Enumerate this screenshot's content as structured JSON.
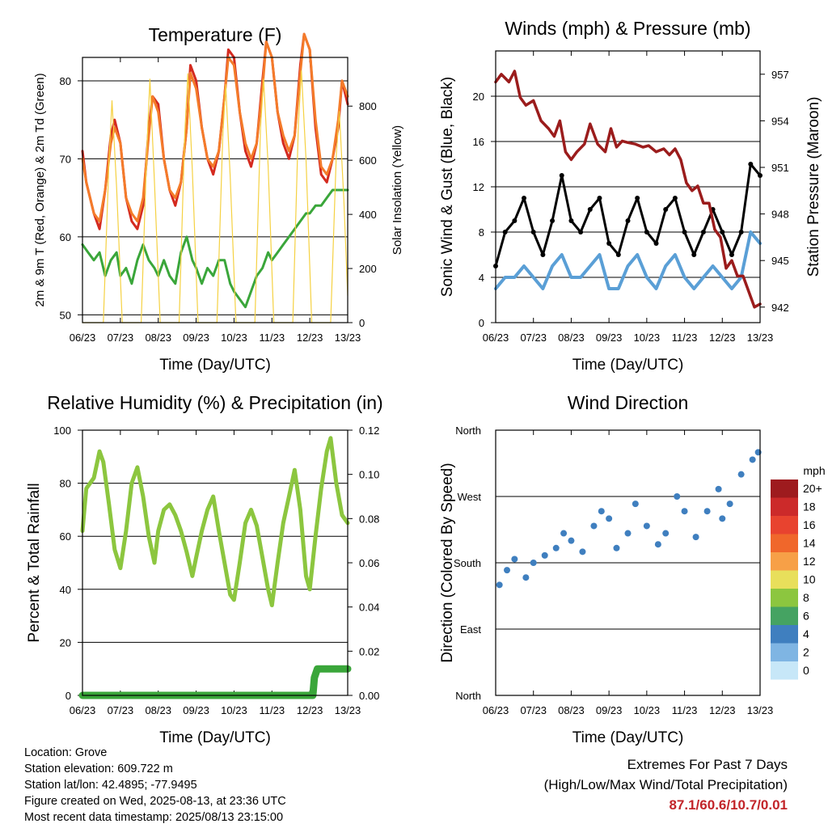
{
  "x_ticks": [
    "06/23",
    "07/23",
    "08/23",
    "09/23",
    "10/23",
    "11/23",
    "12/23",
    "13/23"
  ],
  "info": {
    "location": "Location: Grove",
    "elevation": "Station elevation: 609.722 m",
    "latlon": "Station lat/lon: 42.4895; -77.9495",
    "created": "Figure created on Wed, 2025-08-13, at 23:36 UTC",
    "recent": "Most recent data timestamp: 2025/08/13 23:15:00"
  },
  "extremes": {
    "title": "Extremes For Past 7 Days",
    "subtitle": "(High/Low/Max Wind/Total Precipitation)",
    "values": "87.1/60.6/10.7/0.01"
  },
  "chart_data": [
    {
      "type": "line",
      "title": "Temperature (F)",
      "xlabel": "Time (Day/UTC)",
      "ylabel": "2m & 9m T (Red, Orange) & 2m Td (Green)",
      "ylabel_right": "Solar Insolation (Yellow)",
      "ylim": [
        49,
        83
      ],
      "yticks": [
        50,
        60,
        70,
        80
      ],
      "ylim_right": [
        0,
        980
      ],
      "yticks_right": [
        0,
        200,
        400,
        600,
        800
      ],
      "xlim": [
        0,
        7
      ],
      "grid": true,
      "series": [
        {
          "name": "2m T",
          "color": "#d42a1f",
          "axis": "left",
          "x": [
            0,
            0.1,
            0.3,
            0.45,
            0.6,
            0.75,
            0.85,
            1.0,
            1.15,
            1.3,
            1.45,
            1.6,
            1.75,
            1.85,
            2.0,
            2.15,
            2.3,
            2.45,
            2.6,
            2.75,
            2.85,
            3.0,
            3.15,
            3.3,
            3.45,
            3.6,
            3.75,
            3.85,
            4.0,
            4.15,
            4.3,
            4.45,
            4.6,
            4.75,
            4.85,
            5.0,
            5.15,
            5.3,
            5.45,
            5.6,
            5.75,
            5.85,
            6.0,
            6.15,
            6.3,
            6.45,
            6.6,
            6.75,
            6.85,
            7.0
          ],
          "y": [
            71,
            67,
            63,
            61,
            66,
            73,
            75,
            72,
            65,
            62,
            61,
            64,
            74,
            78,
            77,
            70,
            66,
            64,
            67,
            74,
            82,
            80,
            74,
            70,
            68,
            71,
            78,
            84,
            83,
            76,
            71,
            69,
            72,
            80,
            85,
            83,
            76,
            72,
            70,
            73,
            82,
            86,
            84,
            74,
            68,
            67,
            70,
            74,
            80,
            77
          ]
        },
        {
          "name": "9m T",
          "color": "#f47b2a",
          "axis": "left",
          "x": [
            0,
            0.1,
            0.3,
            0.45,
            0.6,
            0.75,
            0.85,
            1.0,
            1.15,
            1.3,
            1.45,
            1.6,
            1.75,
            1.85,
            2.0,
            2.15,
            2.3,
            2.45,
            2.6,
            2.75,
            2.85,
            3.0,
            3.15,
            3.3,
            3.45,
            3.6,
            3.75,
            3.85,
            4.0,
            4.15,
            4.3,
            4.45,
            4.6,
            4.75,
            4.85,
            5.0,
            5.15,
            5.3,
            5.45,
            5.6,
            5.75,
            5.85,
            6.0,
            6.15,
            6.3,
            6.45,
            6.6,
            6.75,
            6.85,
            7.0
          ],
          "y": [
            70,
            67,
            63,
            62,
            66,
            72,
            74,
            72,
            65,
            63,
            62,
            65,
            73,
            78,
            76,
            70,
            66,
            65,
            67,
            74,
            81,
            79,
            74,
            70,
            69,
            71,
            78,
            83,
            82,
            76,
            72,
            70,
            72,
            79,
            85,
            83,
            76,
            73,
            71,
            73,
            81,
            86,
            84,
            75,
            69,
            68,
            70,
            75,
            80,
            78
          ]
        },
        {
          "name": "2m Td",
          "color": "#3aa63a",
          "axis": "left",
          "x": [
            0,
            0.15,
            0.3,
            0.45,
            0.6,
            0.75,
            0.9,
            1.0,
            1.15,
            1.3,
            1.45,
            1.6,
            1.75,
            1.9,
            2.0,
            2.15,
            2.3,
            2.45,
            2.6,
            2.75,
            2.9,
            3.0,
            3.15,
            3.3,
            3.45,
            3.6,
            3.75,
            3.9,
            4.0,
            4.15,
            4.3,
            4.45,
            4.6,
            4.75,
            4.9,
            5.0,
            5.15,
            5.3,
            5.45,
            5.6,
            5.75,
            5.9,
            6.0,
            6.15,
            6.3,
            6.45,
            6.6,
            6.75,
            6.9,
            7.0
          ],
          "y": [
            59,
            58,
            57,
            58,
            55,
            57,
            58,
            55,
            56,
            54,
            57,
            59,
            57,
            56,
            55,
            57,
            55,
            54,
            58,
            60,
            57,
            56,
            54,
            56,
            55,
            57,
            57,
            54,
            53,
            52,
            51,
            53,
            55,
            56,
            58,
            57,
            58,
            59,
            60,
            61,
            62,
            63,
            63,
            64,
            64,
            65,
            66,
            66,
            66,
            66
          ]
        },
        {
          "name": "Solar Insolation",
          "color": "#f5d142",
          "axis": "right",
          "x": [
            0,
            0.55,
            0.7,
            0.78,
            0.9,
            1.05,
            1.55,
            1.7,
            1.78,
            1.9,
            2.05,
            2.55,
            2.7,
            2.78,
            2.9,
            3.05,
            3.55,
            3.7,
            3.78,
            3.9,
            4.05,
            4.55,
            4.7,
            4.78,
            4.9,
            5.05,
            5.55,
            5.7,
            5.78,
            5.9,
            6.05,
            6.55,
            6.7,
            6.78,
            6.9,
            7.0
          ],
          "y": [
            0,
            0,
            600,
            820,
            500,
            0,
            0,
            650,
            900,
            520,
            0,
            0,
            700,
            920,
            560,
            0,
            0,
            680,
            880,
            540,
            0,
            0,
            720,
            900,
            580,
            0,
            0,
            740,
            930,
            600,
            0,
            0,
            620,
            780,
            450,
            100
          ]
        }
      ]
    },
    {
      "type": "line",
      "title": "Winds (mph) & Pressure (mb)",
      "xlabel": "Time (Day/UTC)",
      "ylabel": "Sonic Wind & Gust (Blue, Black)",
      "ylabel_right": "Station Pressure (Maroon)",
      "ylim": [
        0,
        24
      ],
      "yticks": [
        0,
        4,
        8,
        12,
        16,
        20
      ],
      "ylim_right": [
        941,
        958.5
      ],
      "yticks_right": [
        942,
        945,
        948,
        951,
        954,
        957
      ],
      "xlim": [
        0,
        7
      ],
      "grid": true,
      "series": [
        {
          "name": "Sonic Wind",
          "color": "#5a9fd6",
          "axis": "left",
          "x": [
            0,
            0.25,
            0.5,
            0.75,
            1.0,
            1.25,
            1.5,
            1.75,
            2.0,
            2.25,
            2.5,
            2.75,
            3.0,
            3.25,
            3.5,
            3.75,
            4.0,
            4.25,
            4.5,
            4.75,
            5.0,
            5.25,
            5.5,
            5.75,
            6.0,
            6.25,
            6.5,
            6.75,
            7.0
          ],
          "y": [
            3,
            4,
            4,
            5,
            4,
            3,
            5,
            6,
            4,
            4,
            5,
            6,
            3,
            3,
            5,
            6,
            4,
            3,
            5,
            6,
            4,
            3,
            4,
            5,
            4,
            3,
            4,
            8,
            7
          ]
        },
        {
          "name": "Gust",
          "color": "#000000",
          "axis": "left",
          "x": [
            0,
            0.25,
            0.5,
            0.75,
            1.0,
            1.25,
            1.5,
            1.75,
            2.0,
            2.25,
            2.5,
            2.75,
            3.0,
            3.25,
            3.5,
            3.75,
            4.0,
            4.25,
            4.5,
            4.75,
            5.0,
            5.25,
            5.5,
            5.75,
            6.0,
            6.25,
            6.5,
            6.75,
            7.0
          ],
          "y": [
            5,
            8,
            9,
            11,
            8,
            6,
            9,
            13,
            9,
            8,
            10,
            11,
            7,
            6,
            9,
            11,
            8,
            7,
            10,
            11,
            8,
            6,
            8,
            10,
            8,
            6,
            8,
            14,
            13
          ]
        },
        {
          "name": "Station Pressure",
          "color": "#9b1c1c",
          "axis": "right",
          "x": [
            0,
            0.15,
            0.35,
            0.5,
            0.65,
            0.8,
            1.0,
            1.2,
            1.4,
            1.55,
            1.7,
            1.85,
            2.0,
            2.15,
            2.35,
            2.5,
            2.7,
            2.9,
            3.05,
            3.2,
            3.35,
            3.5,
            3.7,
            3.9,
            4.05,
            4.25,
            4.45,
            4.6,
            4.75,
            4.9,
            5.05,
            5.2,
            5.35,
            5.5,
            5.65,
            5.8,
            5.95,
            6.1,
            6.25,
            6.4,
            6.55,
            6.7,
            6.85,
            7.0
          ],
          "y": [
            956.5,
            957,
            956.5,
            957.2,
            955.5,
            955,
            955.3,
            954,
            953.5,
            953,
            954,
            952,
            951.5,
            952,
            952.5,
            953.8,
            952.5,
            952,
            953.5,
            952.3,
            952.7,
            952.6,
            952.5,
            952.3,
            952.4,
            952,
            952.2,
            951.8,
            952.2,
            951.5,
            950,
            949.5,
            949.8,
            948.7,
            948.7,
            947,
            946.5,
            944.5,
            945,
            944,
            944,
            943,
            942,
            942.2
          ]
        }
      ]
    },
    {
      "type": "line",
      "title": "Relative Humidity (%) & Precipitation (in)",
      "xlabel": "Time (Day/UTC)",
      "ylabel": "Percent & Total Rainfall",
      "ylim": [
        0,
        100
      ],
      "yticks": [
        0,
        20,
        40,
        60,
        80,
        100
      ],
      "ylim_right": [
        0,
        0.12
      ],
      "yticks_right": [
        "0.00",
        "0.02",
        "0.04",
        "0.06",
        "0.08",
        "0.10",
        "0.12"
      ],
      "xlim": [
        0,
        7
      ],
      "grid": true,
      "series": [
        {
          "name": "Relative Humidity",
          "color": "#8cc63f",
          "axis": "left",
          "x": [
            0,
            0.1,
            0.3,
            0.45,
            0.55,
            0.7,
            0.85,
            1.0,
            1.15,
            1.3,
            1.45,
            1.6,
            1.75,
            1.9,
            2.0,
            2.15,
            2.3,
            2.45,
            2.6,
            2.75,
            2.9,
            3.0,
            3.15,
            3.3,
            3.45,
            3.6,
            3.75,
            3.9,
            4.0,
            4.15,
            4.3,
            4.45,
            4.6,
            4.75,
            4.9,
            5.0,
            5.15,
            5.3,
            5.45,
            5.6,
            5.75,
            5.9,
            6.0,
            6.15,
            6.3,
            6.45,
            6.55,
            6.7,
            6.85,
            7.0
          ],
          "y": [
            62,
            78,
            82,
            92,
            88,
            72,
            55,
            48,
            62,
            80,
            86,
            75,
            60,
            50,
            62,
            70,
            72,
            68,
            62,
            54,
            45,
            52,
            62,
            70,
            75,
            62,
            50,
            38,
            36,
            50,
            65,
            70,
            64,
            52,
            40,
            34,
            50,
            65,
            75,
            85,
            70,
            45,
            40,
            60,
            78,
            92,
            97,
            80,
            68,
            65
          ]
        },
        {
          "name": "Total Precipitation",
          "color": "#3aa63a",
          "axis": "right",
          "x": [
            0,
            6.0,
            6.08,
            6.12,
            6.2,
            7.0
          ],
          "y": [
            0,
            0,
            0,
            0.008,
            0.012,
            0.012
          ]
        }
      ]
    },
    {
      "type": "scatter",
      "title": "Wind Direction",
      "xlabel": "Time (Day/UTC)",
      "ylabel": "Direction (Colored By Speed)",
      "yticks": [
        "North",
        "East",
        "South",
        "West",
        "North"
      ],
      "ylim": [
        0,
        360
      ],
      "xlim": [
        0,
        7
      ],
      "grid": true,
      "legend": {
        "title": "mph",
        "position": "right",
        "labels": [
          "20+",
          "18",
          "16",
          "14",
          "12",
          "10",
          "8",
          "6",
          "4",
          "2",
          "0"
        ],
        "colors": [
          "#9e1b1e",
          "#cc2a2a",
          "#e8432f",
          "#f0672b",
          "#f7a047",
          "#e8df5b",
          "#8cc63f",
          "#45a362",
          "#3f7fbf",
          "#7fb5e3",
          "#c7e7f8"
        ]
      },
      "series": [
        {
          "name": "Direction",
          "x": [
            0.1,
            0.3,
            0.5,
            0.8,
            1.0,
            1.3,
            1.6,
            1.8,
            2.0,
            2.3,
            2.6,
            2.8,
            3.0,
            3.2,
            3.5,
            3.7,
            4.0,
            4.3,
            4.5,
            4.8,
            5.0,
            5.3,
            5.6,
            5.9,
            6.0,
            6.2,
            6.5,
            6.8,
            6.95
          ],
          "y": [
            150,
            170,
            185,
            160,
            180,
            190,
            200,
            220,
            210,
            195,
            230,
            250,
            240,
            200,
            220,
            260,
            230,
            205,
            220,
            270,
            250,
            215,
            250,
            280,
            240,
            260,
            300,
            320,
            330
          ]
        }
      ]
    }
  ]
}
